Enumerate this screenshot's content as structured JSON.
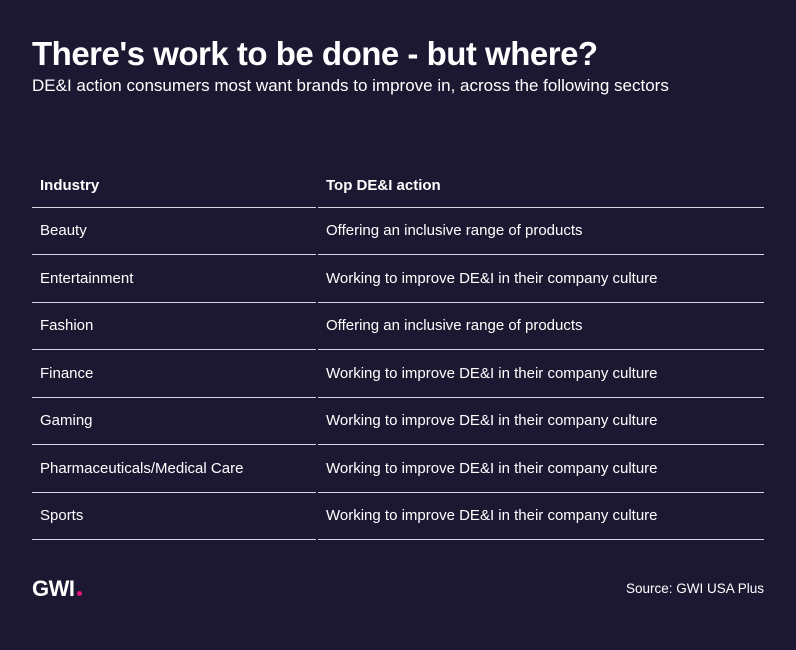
{
  "title": "There's work to be done - but where?",
  "subtitle": "DE&I action consumers most want brands to improve in, across the following sectors",
  "logo": {
    "text": "GWI",
    "dot_color": "#e2137e"
  },
  "source": "Source: GWI USA Plus",
  "colors": {
    "background": "#1c1831",
    "text": "#ffffff",
    "rule": "#d8d6e0",
    "accent": "#e2137e"
  },
  "chart_data": {
    "type": "table",
    "columns": [
      "Industry",
      "Top DE&I action"
    ],
    "rows": [
      [
        "Beauty",
        "Offering an inclusive range of products"
      ],
      [
        "Entertainment",
        "Working to improve DE&I in their company culture"
      ],
      [
        "Fashion",
        "Offering an inclusive range of products"
      ],
      [
        "Finance",
        "Working to improve DE&I in their company culture"
      ],
      [
        "Gaming",
        "Working to improve DE&I in their company culture"
      ],
      [
        "Pharmaceuticals/Medical Care",
        "Working to improve DE&I in their company culture"
      ],
      [
        "Sports",
        "Working to improve DE&I in their company culture"
      ]
    ]
  }
}
